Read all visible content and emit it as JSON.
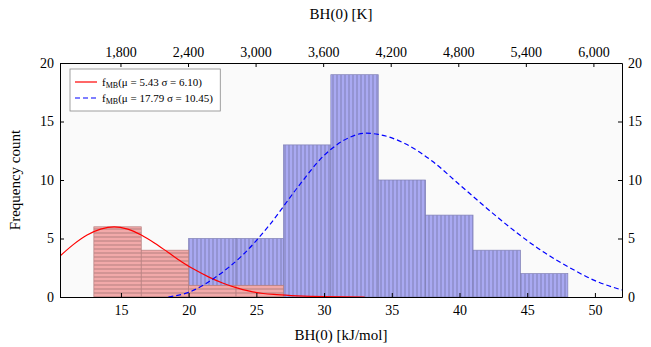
{
  "chart_data": {
    "type": "histogram",
    "x_label": "BH(0) [kJ/mol]",
    "x2_label": "BH(0) [K]",
    "y_label": "Frequency count",
    "xlim": [
      10.5,
      52
    ],
    "xticks": [
      15,
      20,
      25,
      30,
      35,
      40,
      45,
      50
    ],
    "x2lim": [
      1263,
      6254
    ],
    "x2ticks": [
      {
        "value": 1800,
        "label": "1,800"
      },
      {
        "value": 2400,
        "label": "2,400"
      },
      {
        "value": 3000,
        "label": "3,000"
      },
      {
        "value": 3600,
        "label": "3,600"
      },
      {
        "value": 4200,
        "label": "4,200"
      },
      {
        "value": 4800,
        "label": "4,800"
      },
      {
        "value": 5400,
        "label": "5,400"
      },
      {
        "value": 6000,
        "label": "6,000"
      }
    ],
    "ylim": [
      0,
      20
    ],
    "yticks": [
      0,
      5,
      10,
      15,
      20
    ],
    "y2lim": [
      0,
      20
    ],
    "y2ticks": [
      0,
      5,
      10,
      15,
      20
    ],
    "legend": "upper left",
    "series": [
      {
        "name": "fMB(μ = 5.43 σ = 6.10)",
        "type": "line",
        "color": "#ff0000",
        "line_style": "solid",
        "x": [
          10.5,
          11.5,
          12.5,
          13.5,
          14.5,
          15.5,
          16.5,
          17.5,
          18.5,
          19.5,
          20.5,
          21.5,
          22.5,
          23.5,
          24.5,
          25.5,
          26.5,
          28,
          30,
          33
        ],
        "values": [
          3.5,
          4.5,
          5.3,
          5.8,
          6.0,
          5.8,
          5.3,
          4.6,
          3.8,
          3.0,
          2.3,
          1.7,
          1.2,
          0.8,
          0.5,
          0.3,
          0.2,
          0.1,
          0.03,
          0
        ]
      },
      {
        "name": "fMB(μ = 17.79 σ = 10.45)",
        "type": "line",
        "color": "#0000ff",
        "line_style": "dashed",
        "x": [
          18.5,
          20,
          22,
          24,
          26,
          28,
          30,
          32,
          33,
          34,
          36,
          38,
          40,
          42,
          44,
          46,
          48,
          50,
          52
        ],
        "values": [
          0,
          0.4,
          1.7,
          3.6,
          6.2,
          9.3,
          12.1,
          13.7,
          14.0,
          13.9,
          13.1,
          11.6,
          9.6,
          7.6,
          5.7,
          4.0,
          2.6,
          1.4,
          0.6
        ]
      },
      {
        "type": "histogram",
        "color": "#a9a9f2",
        "bins": [
          20.0,
          23.5,
          27.0,
          30.5,
          34.0,
          37.5,
          41.0,
          44.5,
          48.0
        ],
        "counts": [
          5,
          5,
          13,
          19,
          10,
          7,
          4,
          2
        ]
      },
      {
        "type": "histogram",
        "color": "#f2a9a9",
        "bins": [
          13.0,
          16.5,
          20.0,
          23.5,
          27.0
        ],
        "counts": [
          6,
          4,
          1,
          1
        ]
      }
    ]
  }
}
